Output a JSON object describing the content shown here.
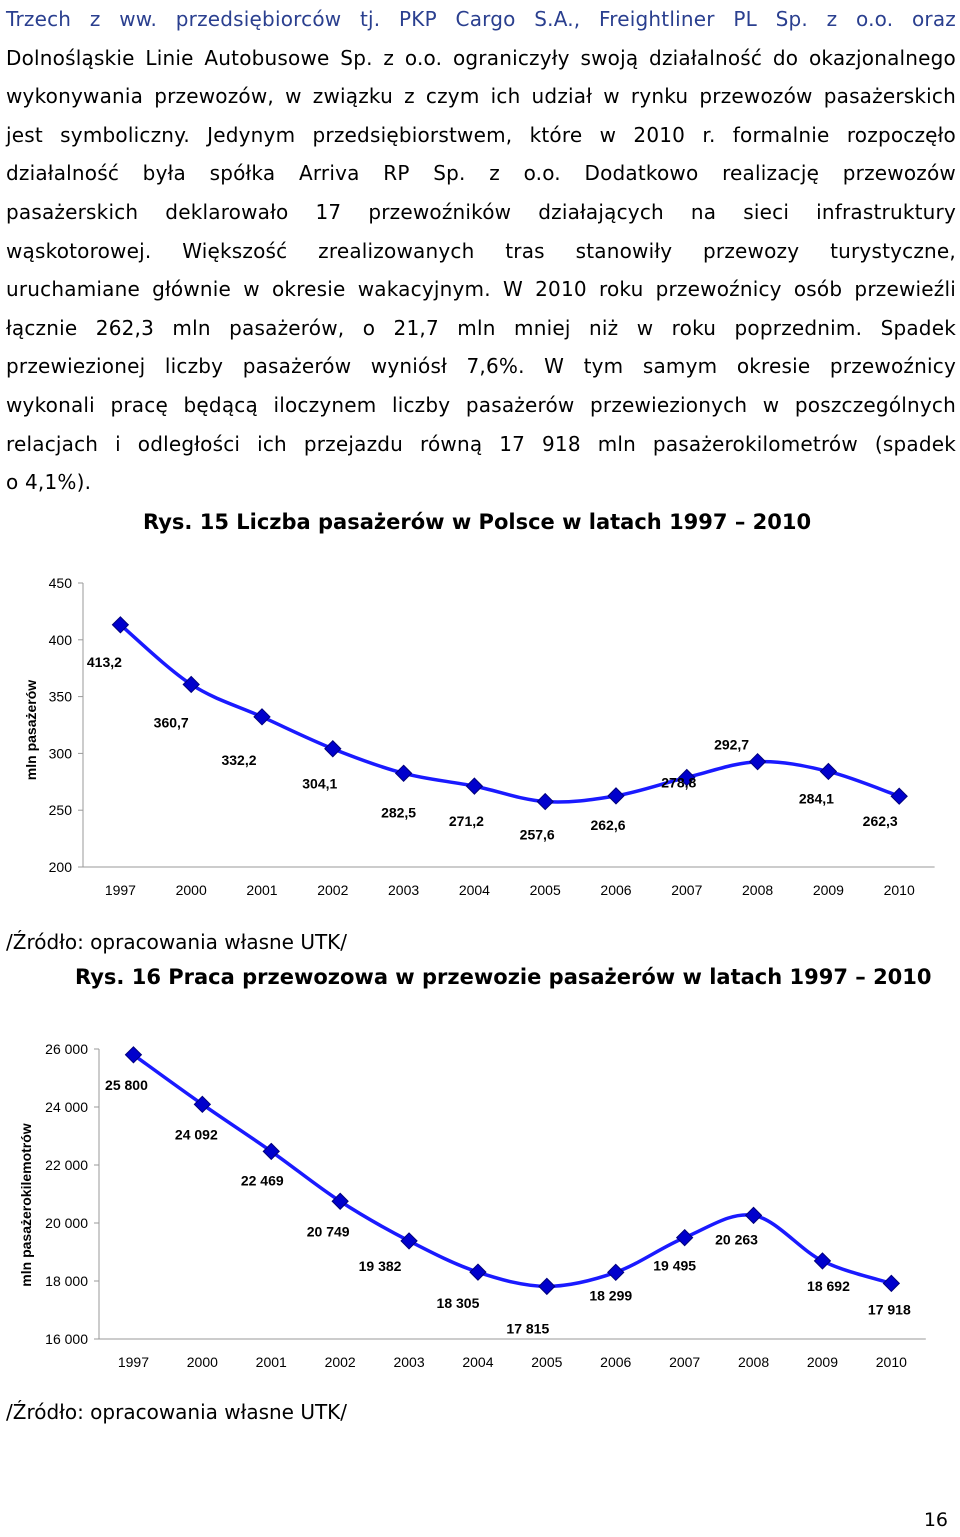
{
  "text": {
    "lines": [
      "Trzech z ww. przedsiębiorców tj. PKP Cargo S.A., Freightliner PL Sp. z o.o. oraz",
      "Dolnośląskie Linie Autobusowe Sp. z o.o. ograniczyły swoją działalność do okazjonalnego",
      "wykonywania przewozów, w związku z czym ich udział w rynku przewozów pasażerskich",
      "jest symboliczny. Jedynym przedsiębiorstwem, które w 2010 r. formalnie rozpoczęło",
      "działalność była spółka Arriva RP Sp. z o.o. Dodatkowo realizację przewozów",
      "pasażerskich deklarowało 17 przewoźników działających na sieci infrastruktury",
      "wąskotorowej. Większość zrealizowanych tras stanowiły przewozy turystyczne,",
      "uruchamiane głównie w okresie wakacyjnym. W 2010 roku przewoźnicy osób przewieźli",
      "łącznie 262,3 mln pasażerów, o 21,7 mln mniej niż w roku poprzednim. Spadek",
      "przewiezionej liczby pasażerów wyniósł 7,6%. W tym samym okresie przewoźnicy",
      "wykonali pracę będącą iloczynem liczby pasażerów przewiezionych w poszczególnych",
      "relacjach i odległości ich przejazdu równą 17 918 mln pasażerokilometrów (spadek",
      "o 4,1%)."
    ]
  },
  "figure1": {
    "caption": "Rys. 15 Liczba pasażerów w Polsce w latach 1997 – 2010",
    "source": "/Źródło: opracowania własne UTK/"
  },
  "figure2": {
    "caption": "Rys. 16 Praca przewozowa w przewozie pasażerów w latach 1997 – 2010",
    "source": "/Źródło: opracowania własne UTK/"
  },
  "page_number": "16",
  "colors": {
    "line": "#1a1aff",
    "marker": "#0000cc",
    "axis": "#999999",
    "text": "#000000"
  },
  "chart_data": [
    {
      "type": "line",
      "title": "Rys. 15 Liczba pasażerów w Polsce w latach 1997 – 2010",
      "ylabel": "mln pasażerów",
      "xlabel": "",
      "categories": [
        "1997",
        "2000",
        "2001",
        "2002",
        "2003",
        "2004",
        "2005",
        "2006",
        "2007",
        "2008",
        "2009",
        "2010"
      ],
      "values": [
        413.2,
        360.7,
        332.2,
        304.1,
        282.5,
        271.2,
        257.6,
        262.6,
        278.8,
        292.7,
        284.1,
        262.3
      ],
      "data_labels": [
        "413,2",
        "360,7",
        "332,2",
        "304,1",
        "282,5",
        "271,2",
        "257,6",
        "262,6",
        "278,8",
        "292,7",
        "284,1",
        "262,3"
      ],
      "yticks": [
        200,
        250,
        300,
        350,
        400,
        450
      ],
      "ytick_labels": [
        "200",
        "250",
        "300",
        "350",
        "400",
        "450"
      ],
      "ylim": [
        200,
        450
      ],
      "grid": false,
      "legend": "none"
    },
    {
      "type": "line",
      "title": "Rys. 16 Praca przewozowa w przewozie pasażerów w latach 1997 – 2010",
      "ylabel": "mln pasażerokilemotrów",
      "xlabel": "",
      "categories": [
        "1997",
        "2000",
        "2001",
        "2002",
        "2003",
        "2004",
        "2005",
        "2006",
        "2007",
        "2008",
        "2009",
        "2010"
      ],
      "values": [
        25800,
        24092,
        22469,
        20749,
        19382,
        18305,
        17815,
        18299,
        19495,
        20263,
        18692,
        17918
      ],
      "data_labels": [
        "25 800",
        "24 092",
        "22 469",
        "20 749",
        "19 382",
        "18 305",
        "17 815",
        "18 299",
        "19 495",
        "20 263",
        "18 692",
        "17 918"
      ],
      "yticks": [
        16000,
        18000,
        20000,
        22000,
        24000,
        26000
      ],
      "ytick_labels": [
        "16 000",
        "18 000",
        "20 000",
        "22 000",
        "24 000",
        "26 000"
      ],
      "ylim": [
        16000,
        26000
      ],
      "grid": false,
      "legend": "none"
    }
  ]
}
